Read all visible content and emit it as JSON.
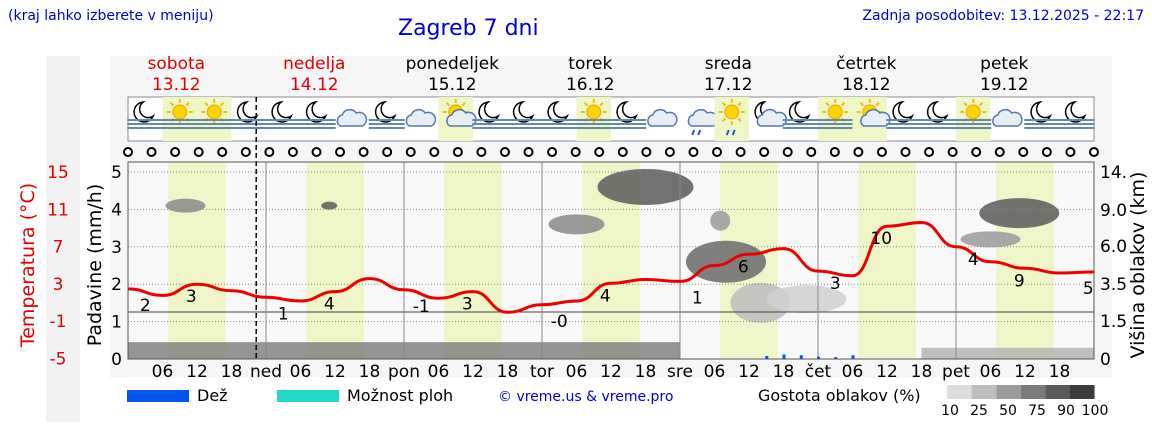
{
  "header": {
    "menu_note": "(kraj lahko izberete v meniju)",
    "title": "Zagreb 7 dni",
    "last_update": "Zadnja posodobitev: 13.12.2025 - 22:17"
  },
  "days": [
    {
      "name": "sobota",
      "date": "13.12",
      "color": "#e00000"
    },
    {
      "name": "nedelja",
      "date": "14.12",
      "color": "#e00000"
    },
    {
      "name": "ponedeljek",
      "date": "15.12",
      "color": "#000000"
    },
    {
      "name": "torek",
      "date": "16.12",
      "color": "#000000"
    },
    {
      "name": "sreda",
      "date": "17.12",
      "color": "#000000"
    },
    {
      "name": "četrtek",
      "date": "18.12",
      "color": "#000000"
    },
    {
      "name": "petek",
      "date": "19.12",
      "color": "#000000"
    }
  ],
  "x_ticks": [
    "06",
    "12",
    "18",
    "ned",
    "06",
    "12",
    "18",
    "pon",
    "06",
    "12",
    "18",
    "tor",
    "06",
    "12",
    "18",
    "sre",
    "06",
    "12",
    "18",
    "čet",
    "06",
    "12",
    "18",
    "pet",
    "06",
    "12",
    "18"
  ],
  "weather_icons": [
    "moon-fog",
    "sun-fog",
    "sun-fog",
    "moon-fog",
    "moon-fog",
    "moon-fog",
    "cloud",
    "moon-fog",
    "cloud",
    "sun-cloud",
    "moon-fog",
    "moon-fog",
    "moon-fog",
    "sun-fog",
    "moon-fog",
    "cloud",
    "rain-cloud",
    "sun-rain",
    "moon-cloud",
    "moon-fog",
    "sun-fog",
    "sun-cloud",
    "moon-fog",
    "moon-fog",
    "sun-fog",
    "cloud",
    "moon-fog",
    "moon-fog"
  ],
  "left_axis_precip": {
    "label": "Padavine (mm/h)",
    "ticks": [
      "0",
      "1",
      "2",
      "3",
      "4",
      "5"
    ]
  },
  "left_axis_temp": {
    "label": "Temperatura (°C)",
    "ticks": [
      "-5",
      "-1",
      "3",
      "7",
      "11",
      "15"
    ],
    "color": "#e00000"
  },
  "right_axis": {
    "label": "Višina oblakov (km)",
    "ticks": [
      "0",
      "1.5",
      "3.5",
      "6.0",
      "9.0",
      "14."
    ]
  },
  "legend": {
    "rain_label": "Dež",
    "rain_color": "#0055ee",
    "shower_label": "Možnost ploh",
    "shower_color": "#22d8c8",
    "copyright": "© vreme.us & vreme.pro",
    "cloud_density_label": "Gostota oblakov (%)",
    "cloud_density_ticks": [
      "10",
      "25",
      "50",
      "75",
      "90",
      "100"
    ],
    "cloud_density_colors": [
      "#dcdcdc",
      "#bdbdbd",
      "#9a9a9a",
      "#7a7a7a",
      "#5a5a5a",
      "#3c3c3c"
    ]
  },
  "chart_data": {
    "type": "line",
    "title": "Zagreb 7 dni",
    "x_unit": "hours since 13.12 00:00",
    "series": [
      {
        "name": "Temperatura (°C)",
        "color": "#ee0000",
        "x": [
          0,
          6,
          12,
          18,
          24,
          30,
          36,
          42,
          48,
          54,
          60,
          66,
          72,
          78,
          84,
          90,
          96,
          102,
          108,
          114,
          120,
          126,
          132,
          138,
          144,
          150,
          156,
          162,
          168
        ],
        "y": [
          2.5,
          1.8,
          3.0,
          2.3,
          1.6,
          1.2,
          2.2,
          3.6,
          2.4,
          1.5,
          2.2,
          0.0,
          0.8,
          1.2,
          3.1,
          3.5,
          3.3,
          5.0,
          6.2,
          6.8,
          4.4,
          3.9,
          9.2,
          9.6,
          7.0,
          5.4,
          4.7,
          4.2,
          4.3
        ]
      },
      {
        "name": "Padavine (mm/h)",
        "color": "#0055ee",
        "x": [
          111,
          114,
          117,
          120,
          123,
          126
        ],
        "y": [
          0.08,
          0.12,
          0.1,
          0.06,
          0.05,
          0.1
        ]
      }
    ],
    "temperature_labels": [
      {
        "x": 3,
        "value": "2"
      },
      {
        "x": 11,
        "value": "3"
      },
      {
        "x": 27,
        "value": "1"
      },
      {
        "x": 35,
        "value": "4"
      },
      {
        "x": 51,
        "value": "-1"
      },
      {
        "x": 59,
        "value": "3"
      },
      {
        "x": 75,
        "value": "-0"
      },
      {
        "x": 83,
        "value": "4"
      },
      {
        "x": 99,
        "value": "1"
      },
      {
        "x": 107,
        "value": "6"
      },
      {
        "x": 123,
        "value": "3"
      },
      {
        "x": 131,
        "value": "10"
      },
      {
        "x": 147,
        "value": "4"
      },
      {
        "x": 155,
        "value": "9"
      },
      {
        "x": 167,
        "value": "5"
      }
    ],
    "ylim_precip": [
      0,
      5
    ],
    "ylim_temp": [
      -5,
      15
    ],
    "daylight_hours": [
      [
        7,
        17
      ]
    ],
    "grid": true
  }
}
